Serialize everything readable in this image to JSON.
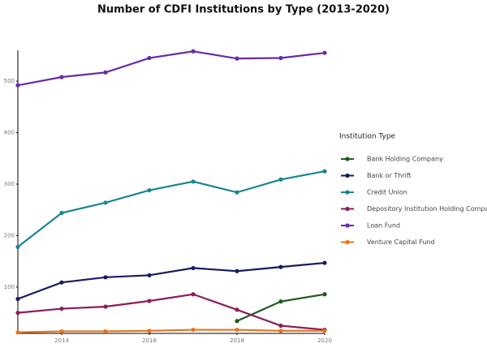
{
  "chart_data": {
    "type": "line",
    "title": "Number of CDFI Institutions by Type (2013-2020)",
    "x": [
      2013,
      2014,
      2015,
      2016,
      2017,
      2018,
      2019,
      2020
    ],
    "xlim": [
      2013,
      2020
    ],
    "xticks": [
      2014,
      2016,
      2018,
      2020
    ],
    "ylim": [
      10,
      560
    ],
    "yticks": [
      100,
      200,
      300,
      400,
      500
    ],
    "grid": false,
    "legend_title": "Institution Type",
    "legend_position": "right",
    "series": [
      {
        "name": "Bank Holding Company",
        "color": "#1f5b1f",
        "values": [
          null,
          null,
          null,
          null,
          null,
          34,
          72,
          86
        ]
      },
      {
        "name": "Bank or Thrift",
        "color": "#1a1a5e",
        "values": [
          77,
          109,
          119,
          123,
          137,
          131,
          139,
          147
        ]
      },
      {
        "name": "Credit Union",
        "color": "#1b8591",
        "values": [
          178,
          244,
          264,
          288,
          305,
          284,
          309,
          325
        ]
      },
      {
        "name": "Depository Institution Holding Company",
        "color": "#8b1e5a",
        "values": [
          50,
          58,
          62,
          73,
          86,
          56,
          25,
          17
        ]
      },
      {
        "name": "Loan Fund",
        "color": "#6a2aa6",
        "values": [
          492,
          508,
          517,
          545,
          558,
          544,
          545,
          555
        ]
      },
      {
        "name": "Venture Capital Fund",
        "color": "#e8731a",
        "values": [
          12,
          14,
          14,
          15,
          17,
          17,
          15,
          15
        ]
      }
    ]
  }
}
